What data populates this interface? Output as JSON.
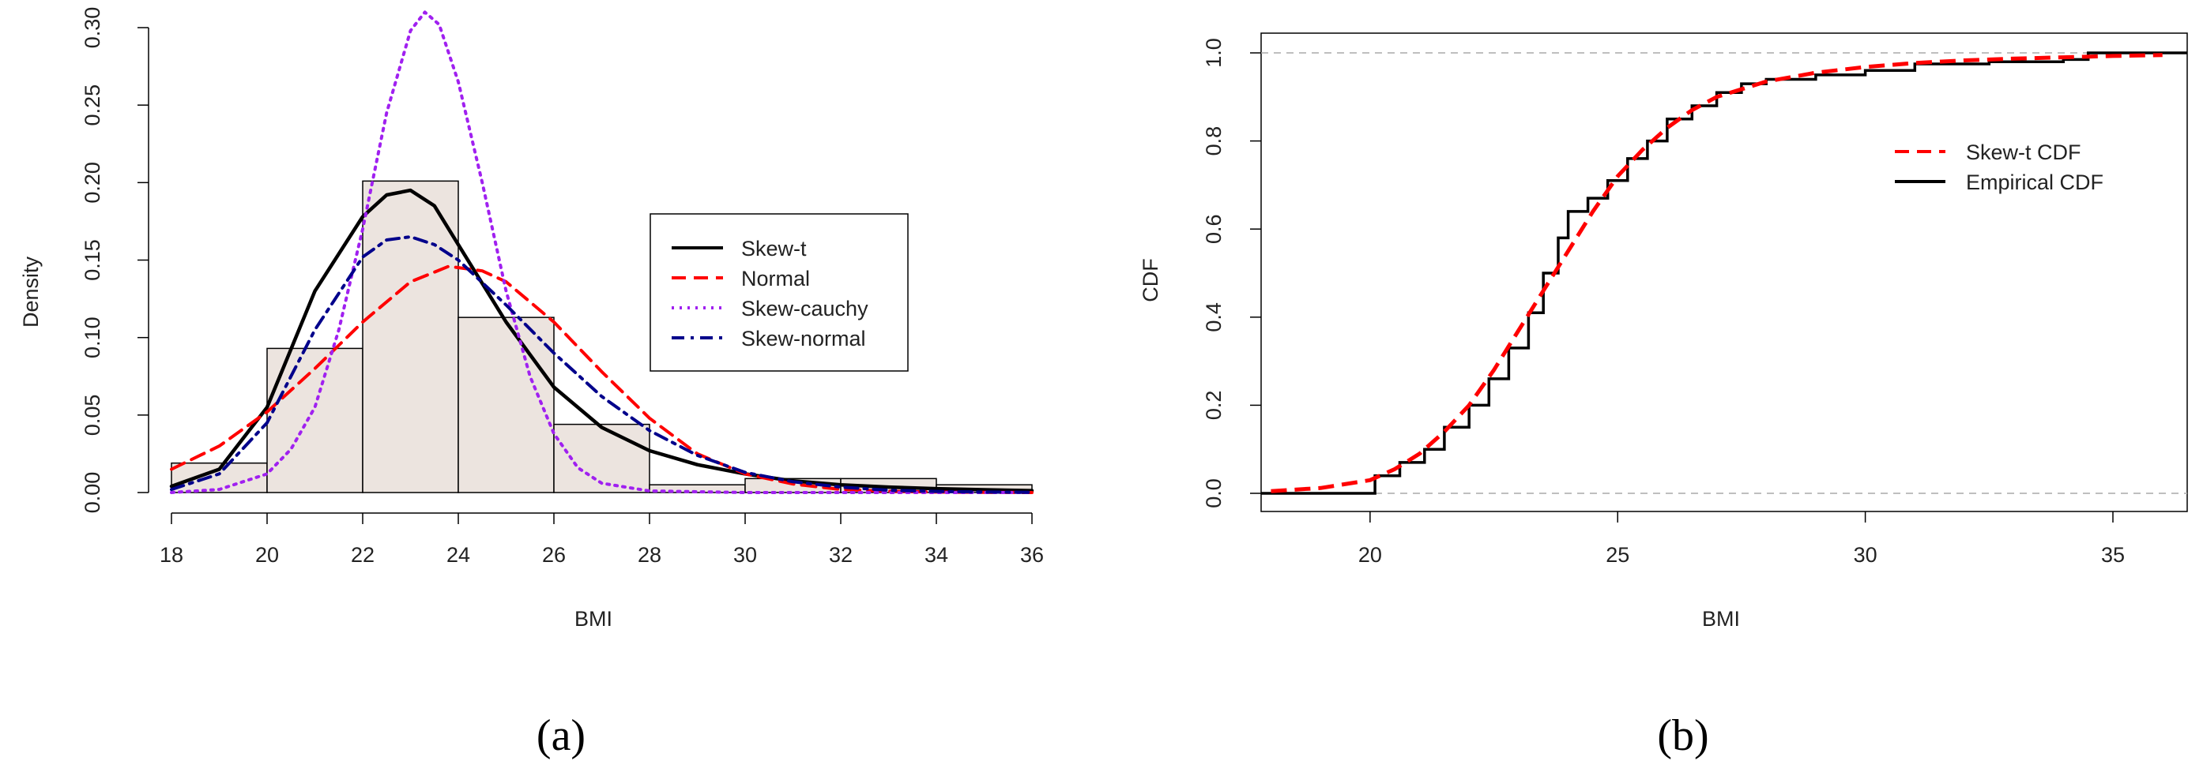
{
  "chart_data": [
    {
      "panel_label": "(a)",
      "type": "histogram_with_density_curves",
      "xlabel": "BMI",
      "ylabel": "Density",
      "xlim": [
        18,
        36
      ],
      "ylim": [
        0,
        0.3
      ],
      "x_ticks": [
        "18",
        "20",
        "22",
        "24",
        "26",
        "28",
        "30",
        "32",
        "34",
        "36"
      ],
      "y_ticks": [
        "0.00",
        "0.05",
        "0.10",
        "0.15",
        "0.20",
        "0.25",
        "0.30"
      ],
      "histogram": {
        "bin_edges": [
          18,
          20,
          22,
          24,
          26,
          28,
          30,
          32,
          34,
          36
        ],
        "densities": [
          0.019,
          0.093,
          0.201,
          0.113,
          0.044,
          0.005,
          0.009,
          0.009,
          0.005
        ],
        "fill": "#ece4df"
      },
      "legend": [
        {
          "label": "Skew-t",
          "color": "#000000",
          "style": "solid"
        },
        {
          "label": "Normal",
          "color": "#ff0000",
          "style": "dashed"
        },
        {
          "label": "Skew-cauchy",
          "color": "#a020f0",
          "style": "dotted"
        },
        {
          "label": "Skew-normal",
          "color": "#00008b",
          "style": "dashdot"
        }
      ],
      "series": [
        {
          "name": "Skew-t",
          "x": [
            18,
            19,
            20,
            21,
            22,
            22.5,
            23,
            23.5,
            24,
            25,
            26,
            27,
            28,
            29,
            30,
            31,
            32,
            33,
            34,
            35,
            36
          ],
          "y": [
            0.004,
            0.015,
            0.055,
            0.13,
            0.178,
            0.192,
            0.195,
            0.185,
            0.16,
            0.11,
            0.068,
            0.042,
            0.027,
            0.018,
            0.012,
            0.0075,
            0.005,
            0.0035,
            0.0025,
            0.0018,
            0.0012
          ]
        },
        {
          "name": "Normal",
          "x": [
            18,
            19,
            20,
            21,
            22,
            23,
            23.8,
            24.5,
            25,
            26,
            27,
            28,
            29,
            30,
            31,
            32,
            33,
            34,
            35,
            36
          ],
          "y": [
            0.015,
            0.03,
            0.052,
            0.08,
            0.11,
            0.136,
            0.146,
            0.143,
            0.136,
            0.11,
            0.078,
            0.048,
            0.025,
            0.012,
            0.0055,
            0.002,
            0.0008,
            0.0003,
            0.0001,
            0.0
          ]
        },
        {
          "name": "Skew-cauchy",
          "x": [
            18,
            19,
            20,
            20.5,
            21,
            21.5,
            22,
            22.5,
            23,
            23.3,
            23.6,
            24,
            24.5,
            25,
            25.5,
            26,
            26.5,
            27,
            28,
            30,
            33,
            36
          ],
          "y": [
            0.0,
            0.002,
            0.012,
            0.028,
            0.055,
            0.105,
            0.17,
            0.245,
            0.298,
            0.31,
            0.302,
            0.265,
            0.2,
            0.13,
            0.075,
            0.038,
            0.016,
            0.006,
            0.001,
            0.0,
            0.0,
            0.0
          ]
        },
        {
          "name": "Skew-normal",
          "x": [
            18,
            19,
            20,
            21,
            22,
            22.5,
            23,
            23.5,
            24,
            25,
            26,
            27,
            28,
            29,
            30,
            31,
            32,
            33,
            34,
            35,
            36
          ],
          "y": [
            0.002,
            0.012,
            0.045,
            0.105,
            0.152,
            0.163,
            0.165,
            0.16,
            0.15,
            0.121,
            0.09,
            0.062,
            0.04,
            0.024,
            0.013,
            0.007,
            0.0035,
            0.0015,
            0.0007,
            0.0003,
            0.0001
          ]
        }
      ]
    },
    {
      "panel_label": "(b)",
      "type": "line",
      "xlabel": "BMI",
      "ylabel": "CDF",
      "xlim": [
        17.8,
        36.5
      ],
      "ylim": [
        0,
        1
      ],
      "x_ticks": [
        "20",
        "25",
        "30",
        "35"
      ],
      "y_ticks": [
        "0.0",
        "0.2",
        "0.4",
        "0.6",
        "0.8",
        "1.0"
      ],
      "reference_lines": [
        0,
        1
      ],
      "legend": [
        {
          "label": "Skew-t CDF",
          "color": "#ff0000",
          "style": "dashed"
        },
        {
          "label": "Empirical CDF",
          "color": "#000000",
          "style": "solid"
        }
      ],
      "series": [
        {
          "name": "Skew-t CDF",
          "x": [
            18,
            19,
            20,
            20.5,
            21,
            21.5,
            22,
            22.5,
            23,
            23.5,
            24,
            24.5,
            25,
            25.5,
            26,
            26.5,
            27,
            28,
            29,
            30,
            31,
            32,
            33,
            34,
            35,
            36
          ],
          "y": [
            0.005,
            0.012,
            0.03,
            0.055,
            0.09,
            0.14,
            0.2,
            0.28,
            0.37,
            0.46,
            0.55,
            0.64,
            0.72,
            0.78,
            0.83,
            0.87,
            0.9,
            0.935,
            0.955,
            0.968,
            0.977,
            0.983,
            0.987,
            0.99,
            0.993,
            0.995
          ]
        },
        {
          "name": "Empirical CDF",
          "x": [
            17.8,
            19.6,
            20.1,
            20.6,
            21.1,
            21.5,
            22,
            22.4,
            22.8,
            23.2,
            23.5,
            23.8,
            24,
            24.4,
            24.8,
            25.2,
            25.6,
            26,
            26.5,
            27,
            27.5,
            28,
            29,
            30,
            31,
            32.5,
            34,
            34.5,
            36.5
          ],
          "y": [
            0.0,
            0.0,
            0.04,
            0.07,
            0.1,
            0.15,
            0.2,
            0.26,
            0.33,
            0.41,
            0.5,
            0.58,
            0.64,
            0.67,
            0.71,
            0.76,
            0.8,
            0.85,
            0.88,
            0.91,
            0.93,
            0.94,
            0.95,
            0.96,
            0.975,
            0.98,
            0.985,
            1.0,
            1.0
          ]
        }
      ]
    }
  ]
}
